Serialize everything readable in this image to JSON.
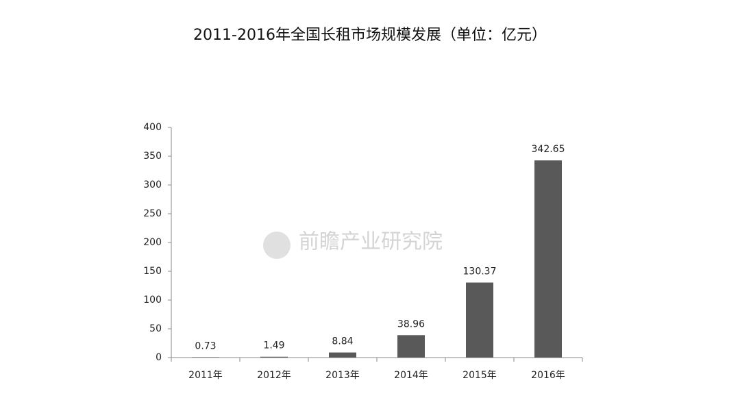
{
  "chart_data": {
    "type": "bar",
    "title": "2011-2016年全国长租市场规模发展（单位：亿元）",
    "categories": [
      "2011年",
      "2012年",
      "2013年",
      "2014年",
      "2015年",
      "2016年"
    ],
    "values": [
      0.73,
      1.49,
      8.84,
      38.96,
      130.37,
      342.65
    ],
    "color": "#595959",
    "ylim": [
      0,
      400
    ],
    "yticks": [
      0,
      50,
      100,
      150,
      200,
      250,
      300,
      350,
      400
    ],
    "grid": false,
    "watermark": "前瞻产业研究院"
  }
}
